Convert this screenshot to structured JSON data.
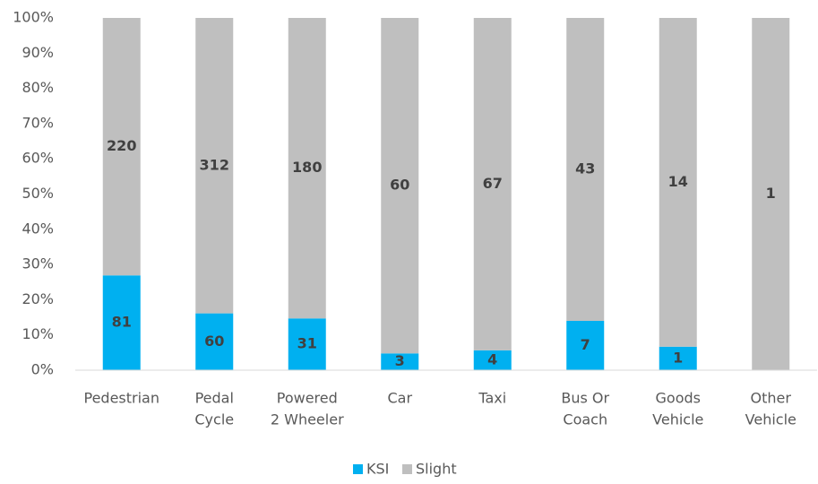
{
  "chart_data": {
    "type": "bar",
    "stacking": "percent",
    "categories": [
      [
        "Pedestrian"
      ],
      [
        "Pedal",
        "Cycle"
      ],
      [
        "Powered",
        "2 Wheeler"
      ],
      [
        "Car"
      ],
      [
        "Taxi"
      ],
      [
        "Bus Or",
        "Coach"
      ],
      [
        "Goods",
        "Vehicle"
      ],
      [
        "Other",
        "Vehicle"
      ]
    ],
    "series": [
      {
        "name": "KSI",
        "color": "#00b0f0",
        "values": [
          81,
          60,
          31,
          3,
          4,
          7,
          1,
          0
        ]
      },
      {
        "name": "Slight",
        "color": "#bfbfbf",
        "values": [
          220,
          312,
          180,
          60,
          67,
          43,
          14,
          1
        ]
      }
    ],
    "ylim": [
      0,
      100
    ],
    "yticks": [
      {
        "value": 0,
        "label": "0%"
      },
      {
        "value": 10,
        "label": "10%"
      },
      {
        "value": 20,
        "label": "20%"
      },
      {
        "value": 30,
        "label": "30%"
      },
      {
        "value": 40,
        "label": "40%"
      },
      {
        "value": 50,
        "label": "50%"
      },
      {
        "value": 60,
        "label": "60%"
      },
      {
        "value": 70,
        "label": "70%"
      },
      {
        "value": 80,
        "label": "80%"
      },
      {
        "value": 90,
        "label": "90%"
      },
      {
        "value": 100,
        "label": "100%"
      }
    ],
    "grid": false,
    "legend": "bottom"
  }
}
